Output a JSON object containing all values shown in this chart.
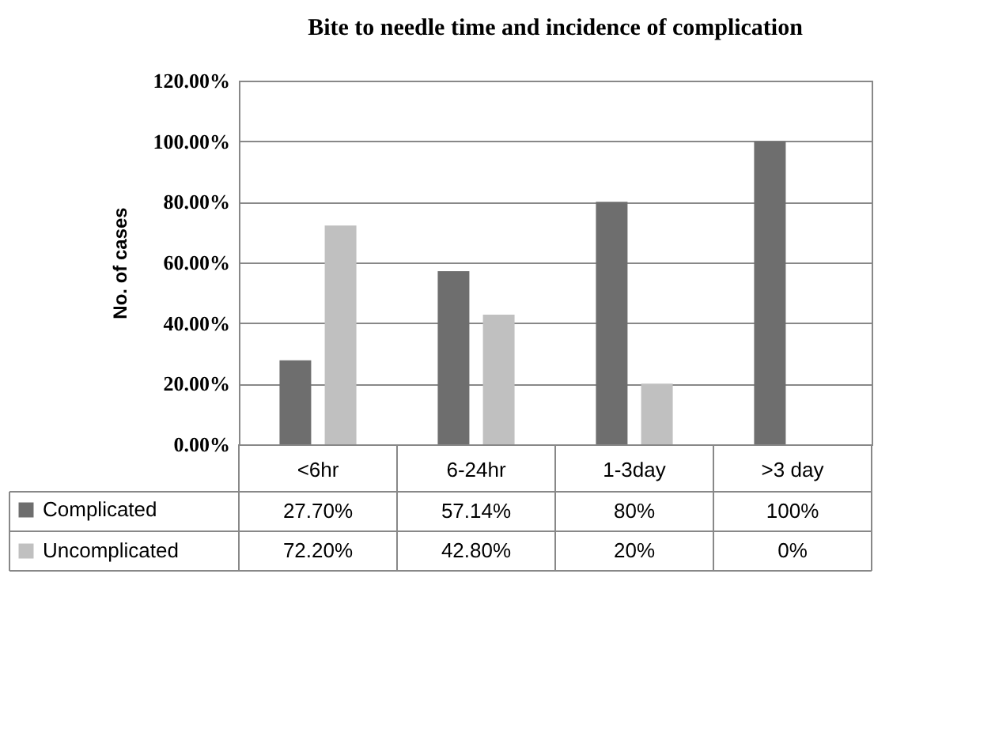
{
  "chart_data": {
    "type": "bar",
    "title": "Bite to needle time and incidence of complication",
    "ylabel": "No. of cases",
    "categories": [
      "<6hr",
      "6-24hr",
      "1-3day",
      ">3 day"
    ],
    "series": [
      {
        "name": "Complicated",
        "color": "#6e6e6e",
        "values": [
          27.7,
          57.14,
          80,
          100
        ],
        "value_labels": [
          "27.70%",
          "57.14%",
          "80%",
          "100%"
        ]
      },
      {
        "name": "Uncomplicated",
        "color": "#c0c0c0",
        "values": [
          72.2,
          42.8,
          20,
          0
        ],
        "value_labels": [
          "72.20%",
          "42.80%",
          "20%",
          "0%"
        ]
      }
    ],
    "ylim": [
      0,
      120
    ],
    "yticks": [
      {
        "value": 0,
        "label": "0.00%"
      },
      {
        "value": 20,
        "label": "20.00%"
      },
      {
        "value": 40,
        "label": "40.00%"
      },
      {
        "value": 60,
        "label": "60.00%"
      },
      {
        "value": 80,
        "label": "80.00%"
      },
      {
        "value": 100,
        "label": "100.00%"
      },
      {
        "value": 120,
        "label": "120.00%"
      }
    ],
    "grid": "y",
    "legend": "bottom"
  }
}
